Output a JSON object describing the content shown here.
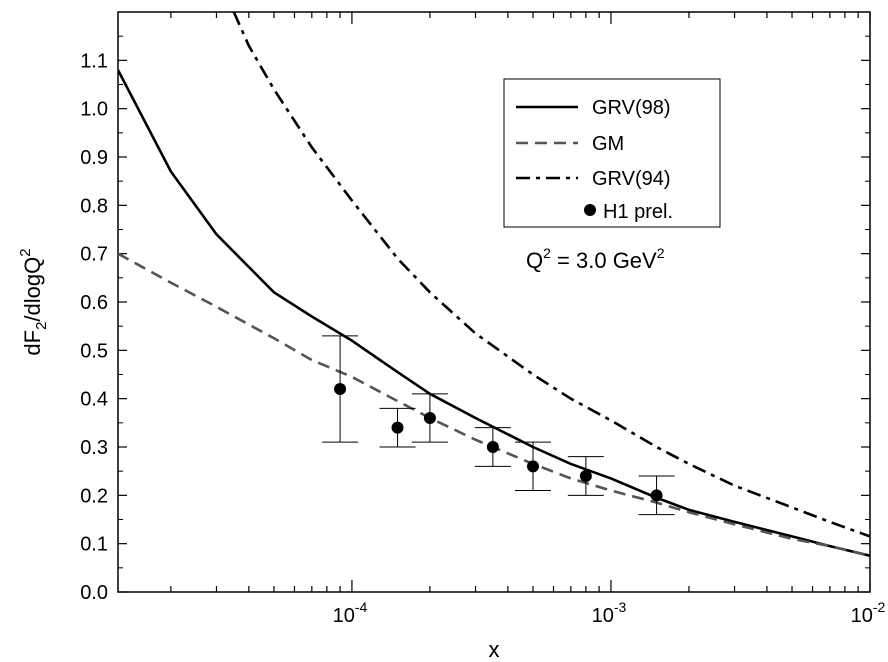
{
  "chart_data": {
    "type": "line",
    "xscale": "log",
    "xlim": [
      1.25e-05,
      0.01
    ],
    "ylim": [
      0.0,
      1.2
    ],
    "xlabel": "x",
    "ylabel": {
      "base": "dF",
      "sub": "2",
      "mid": "/dlogQ",
      "sup": "2"
    },
    "x_ticks": [
      {
        "value": 0.0001,
        "base": "10",
        "exp": "-4"
      },
      {
        "value": 0.001,
        "base": "10",
        "exp": "-3"
      },
      {
        "value": 0.01,
        "base": "10",
        "exp": "-2"
      }
    ],
    "y_ticks": [
      "0.0",
      "0.1",
      "0.2",
      "0.3",
      "0.4",
      "0.5",
      "0.6",
      "0.7",
      "0.8",
      "0.9",
      "1.0",
      "1.1"
    ],
    "annotation": {
      "q": "Q",
      "sup1": "2",
      "mid": " = 3.0 GeV",
      "sup2": "2"
    },
    "legend_position": "top-right",
    "series": [
      {
        "name": "GRV(98)",
        "style": "solid",
        "color": "#000000",
        "x": [
          1.25e-05,
          2e-05,
          3e-05,
          5e-05,
          7e-05,
          0.0001,
          0.00015,
          0.0002,
          0.0003,
          0.0005,
          0.0007,
          0.001,
          0.0015,
          0.002,
          0.003,
          0.005,
          0.007,
          0.01
        ],
        "y": [
          1.08,
          0.87,
          0.74,
          0.62,
          0.57,
          0.52,
          0.455,
          0.41,
          0.36,
          0.3,
          0.265,
          0.235,
          0.195,
          0.17,
          0.145,
          0.115,
          0.095,
          0.075
        ]
      },
      {
        "name": "GM",
        "style": "dashed",
        "color": "#555555",
        "x": [
          1.25e-05,
          2e-05,
          3e-05,
          5e-05,
          7e-05,
          0.0001,
          0.00015,
          0.0002,
          0.0003,
          0.0005,
          0.0007,
          0.001,
          0.0015,
          0.002,
          0.003,
          0.005,
          0.007,
          0.01
        ],
        "y": [
          0.7,
          0.64,
          0.59,
          0.525,
          0.48,
          0.445,
          0.395,
          0.36,
          0.315,
          0.265,
          0.235,
          0.21,
          0.185,
          0.165,
          0.14,
          0.11,
          0.095,
          0.075
        ]
      },
      {
        "name": "GRV(94)",
        "style": "dashdot",
        "color": "#000000",
        "x": [
          3.5e-05,
          4e-05,
          5e-05,
          7e-05,
          0.0001,
          0.00015,
          0.0002,
          0.0003,
          0.0005,
          0.0007,
          0.001,
          0.0015,
          0.002,
          0.003,
          0.005,
          0.007,
          0.01
        ],
        "y": [
          1.2,
          1.13,
          1.04,
          0.92,
          0.81,
          0.69,
          0.62,
          0.535,
          0.45,
          0.4,
          0.355,
          0.3,
          0.265,
          0.22,
          0.175,
          0.145,
          0.115
        ]
      },
      {
        "name": "H1 prel.",
        "style": "points",
        "color": "#000000",
        "x": [
          9e-05,
          0.00015,
          0.0002,
          0.00035,
          0.0005,
          0.0008,
          0.0015
        ],
        "y": [
          0.42,
          0.34,
          0.36,
          0.3,
          0.26,
          0.24,
          0.2
        ],
        "err_low": [
          0.31,
          0.3,
          0.31,
          0.26,
          0.21,
          0.2,
          0.16
        ],
        "err_high": [
          0.53,
          0.38,
          0.41,
          0.34,
          0.31,
          0.28,
          0.24
        ]
      }
    ]
  }
}
